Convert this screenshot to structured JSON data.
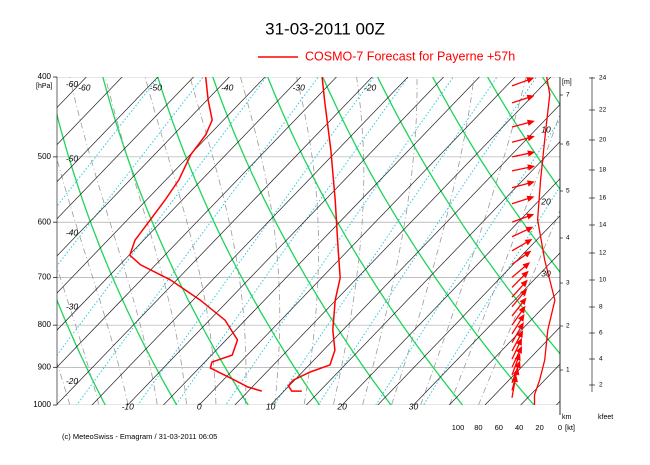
{
  "chart_data": {
    "type": "emagram",
    "title": "31-03-2011  00Z",
    "legend": "COSMO-7 Forecast for Payerne   +57h",
    "footer": "(c) MeteoSwiss - Emagram  /  31-03-2011  06:05",
    "y_label": "[hPa]",
    "log_y": true,
    "ylim": [
      400,
      1000
    ],
    "yticks": [
      400,
      500,
      600,
      700,
      800,
      900,
      1000
    ],
    "xlim": [
      -19.9,
      50.5
    ],
    "xticks": [
      -10,
      0,
      10,
      20,
      30
    ],
    "isotherm_labels_top": [
      -60,
      -50,
      -40,
      -30,
      -20
    ],
    "isotherm_labels_left": [
      -60,
      -50,
      -40,
      -30,
      -20
    ],
    "series": [
      {
        "color": "#ff0000",
        "pressure": [
          400,
          427,
          490,
          564,
          649,
          701,
          746,
          811,
          858,
          894,
          912,
          933,
          948,
          962,
          962
        ],
        "values": [
          -27,
          -23.5,
          -16,
          -8.6,
          -1.4,
          2.6,
          4.9,
          8.6,
          11.6,
          12.9,
          11.1,
          9.8,
          9.9,
          11.1,
          12.5
        ]
      },
      {
        "color": "#ff0000",
        "pressure": [
          400,
          427,
          451,
          470,
          497,
          533,
          564,
          596,
          631,
          658,
          676,
          705,
          746,
          789,
          834,
          870,
          887,
          902,
          927,
          951,
          962
        ],
        "values": [
          -43.3,
          -39.8,
          -36.6,
          -35.5,
          -34.9,
          -33.2,
          -32.4,
          -31.8,
          -31.2,
          -29.9,
          -27.1,
          -20.9,
          -14,
          -7.8,
          -3.4,
          -2.1,
          -4,
          -3.4,
          0.7,
          4.4,
          6.9
        ]
      }
    ],
    "wind": {
      "color": "#ff0000",
      "pressure": [
        400,
        420,
        464,
        533,
        596,
        667,
        746,
        811,
        882,
        933,
        972,
        1000
      ],
      "speed": [
        13,
        10,
        14,
        19,
        22,
        15,
        5,
        12,
        15,
        20,
        25,
        25
      ]
    },
    "wind_axis": {
      "label": "[kt]",
      "xlim": [
        0,
        100
      ],
      "xticks": [
        100,
        80,
        60,
        40,
        20,
        0
      ]
    },
    "speed_labels": [
      10,
      20,
      30
    ],
    "barbs": {
      "color": "#ff0000",
      "pressure": [
        410,
        430,
        460,
        480,
        500,
        520,
        545,
        570,
        600,
        625,
        650,
        675,
        700,
        720,
        740,
        760,
        780,
        800,
        820,
        840,
        860,
        880,
        900,
        920,
        940,
        960,
        980
      ],
      "direction": [
        250,
        252,
        255,
        255,
        258,
        258,
        255,
        252,
        250,
        245,
        240,
        235,
        230,
        225,
        222,
        220,
        218,
        215,
        212,
        210,
        208,
        205,
        205,
        200,
        200,
        195,
        190
      ]
    },
    "height_axis": {
      "label": "[m]",
      "unit": "km",
      "ticks": [
        1,
        2,
        3,
        4,
        5,
        6,
        7
      ]
    },
    "kfeet_axis": {
      "label": "kfeet",
      "ticks": [
        2,
        4,
        6,
        8,
        10,
        12,
        14,
        16,
        18,
        20,
        22,
        24
      ]
    }
  }
}
